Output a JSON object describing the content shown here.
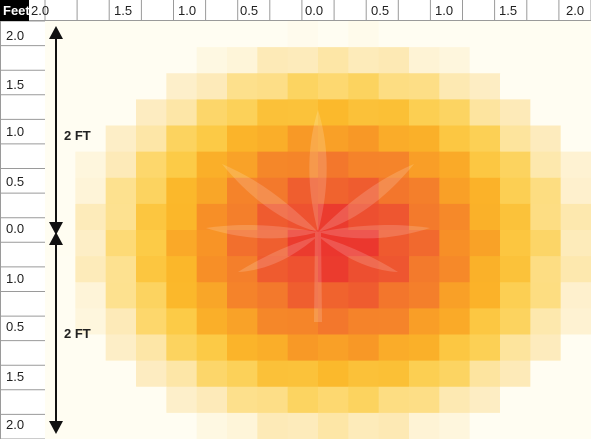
{
  "corner_label": "Feet",
  "top_ruler": [
    "2.0",
    "1.5",
    "1.0",
    "0.5",
    "0.0",
    "0.5",
    "1.0",
    "1.5",
    "2.0"
  ],
  "left_ruler": [
    "2.0",
    "1.5",
    "1.0",
    "0.5",
    "0.0",
    "1.0",
    "0.5",
    "1.5",
    "2.0"
  ],
  "arrows": [
    {
      "label": "2 FT"
    },
    {
      "label": "2 FT"
    }
  ],
  "heatmap": {
    "cols": 18,
    "rows": 16,
    "colors": [
      "#fffdf2",
      "#fdecc0",
      "#fde08c",
      "#fccd4a",
      "#fbb72a",
      "#f89626",
      "#f3782c",
      "#ee5530",
      "#ea2f2d"
    ],
    "center_color": "#e8262a",
    "leaf_icon": "cannabis-leaf-icon",
    "leaf_color": "#ffffff"
  }
}
